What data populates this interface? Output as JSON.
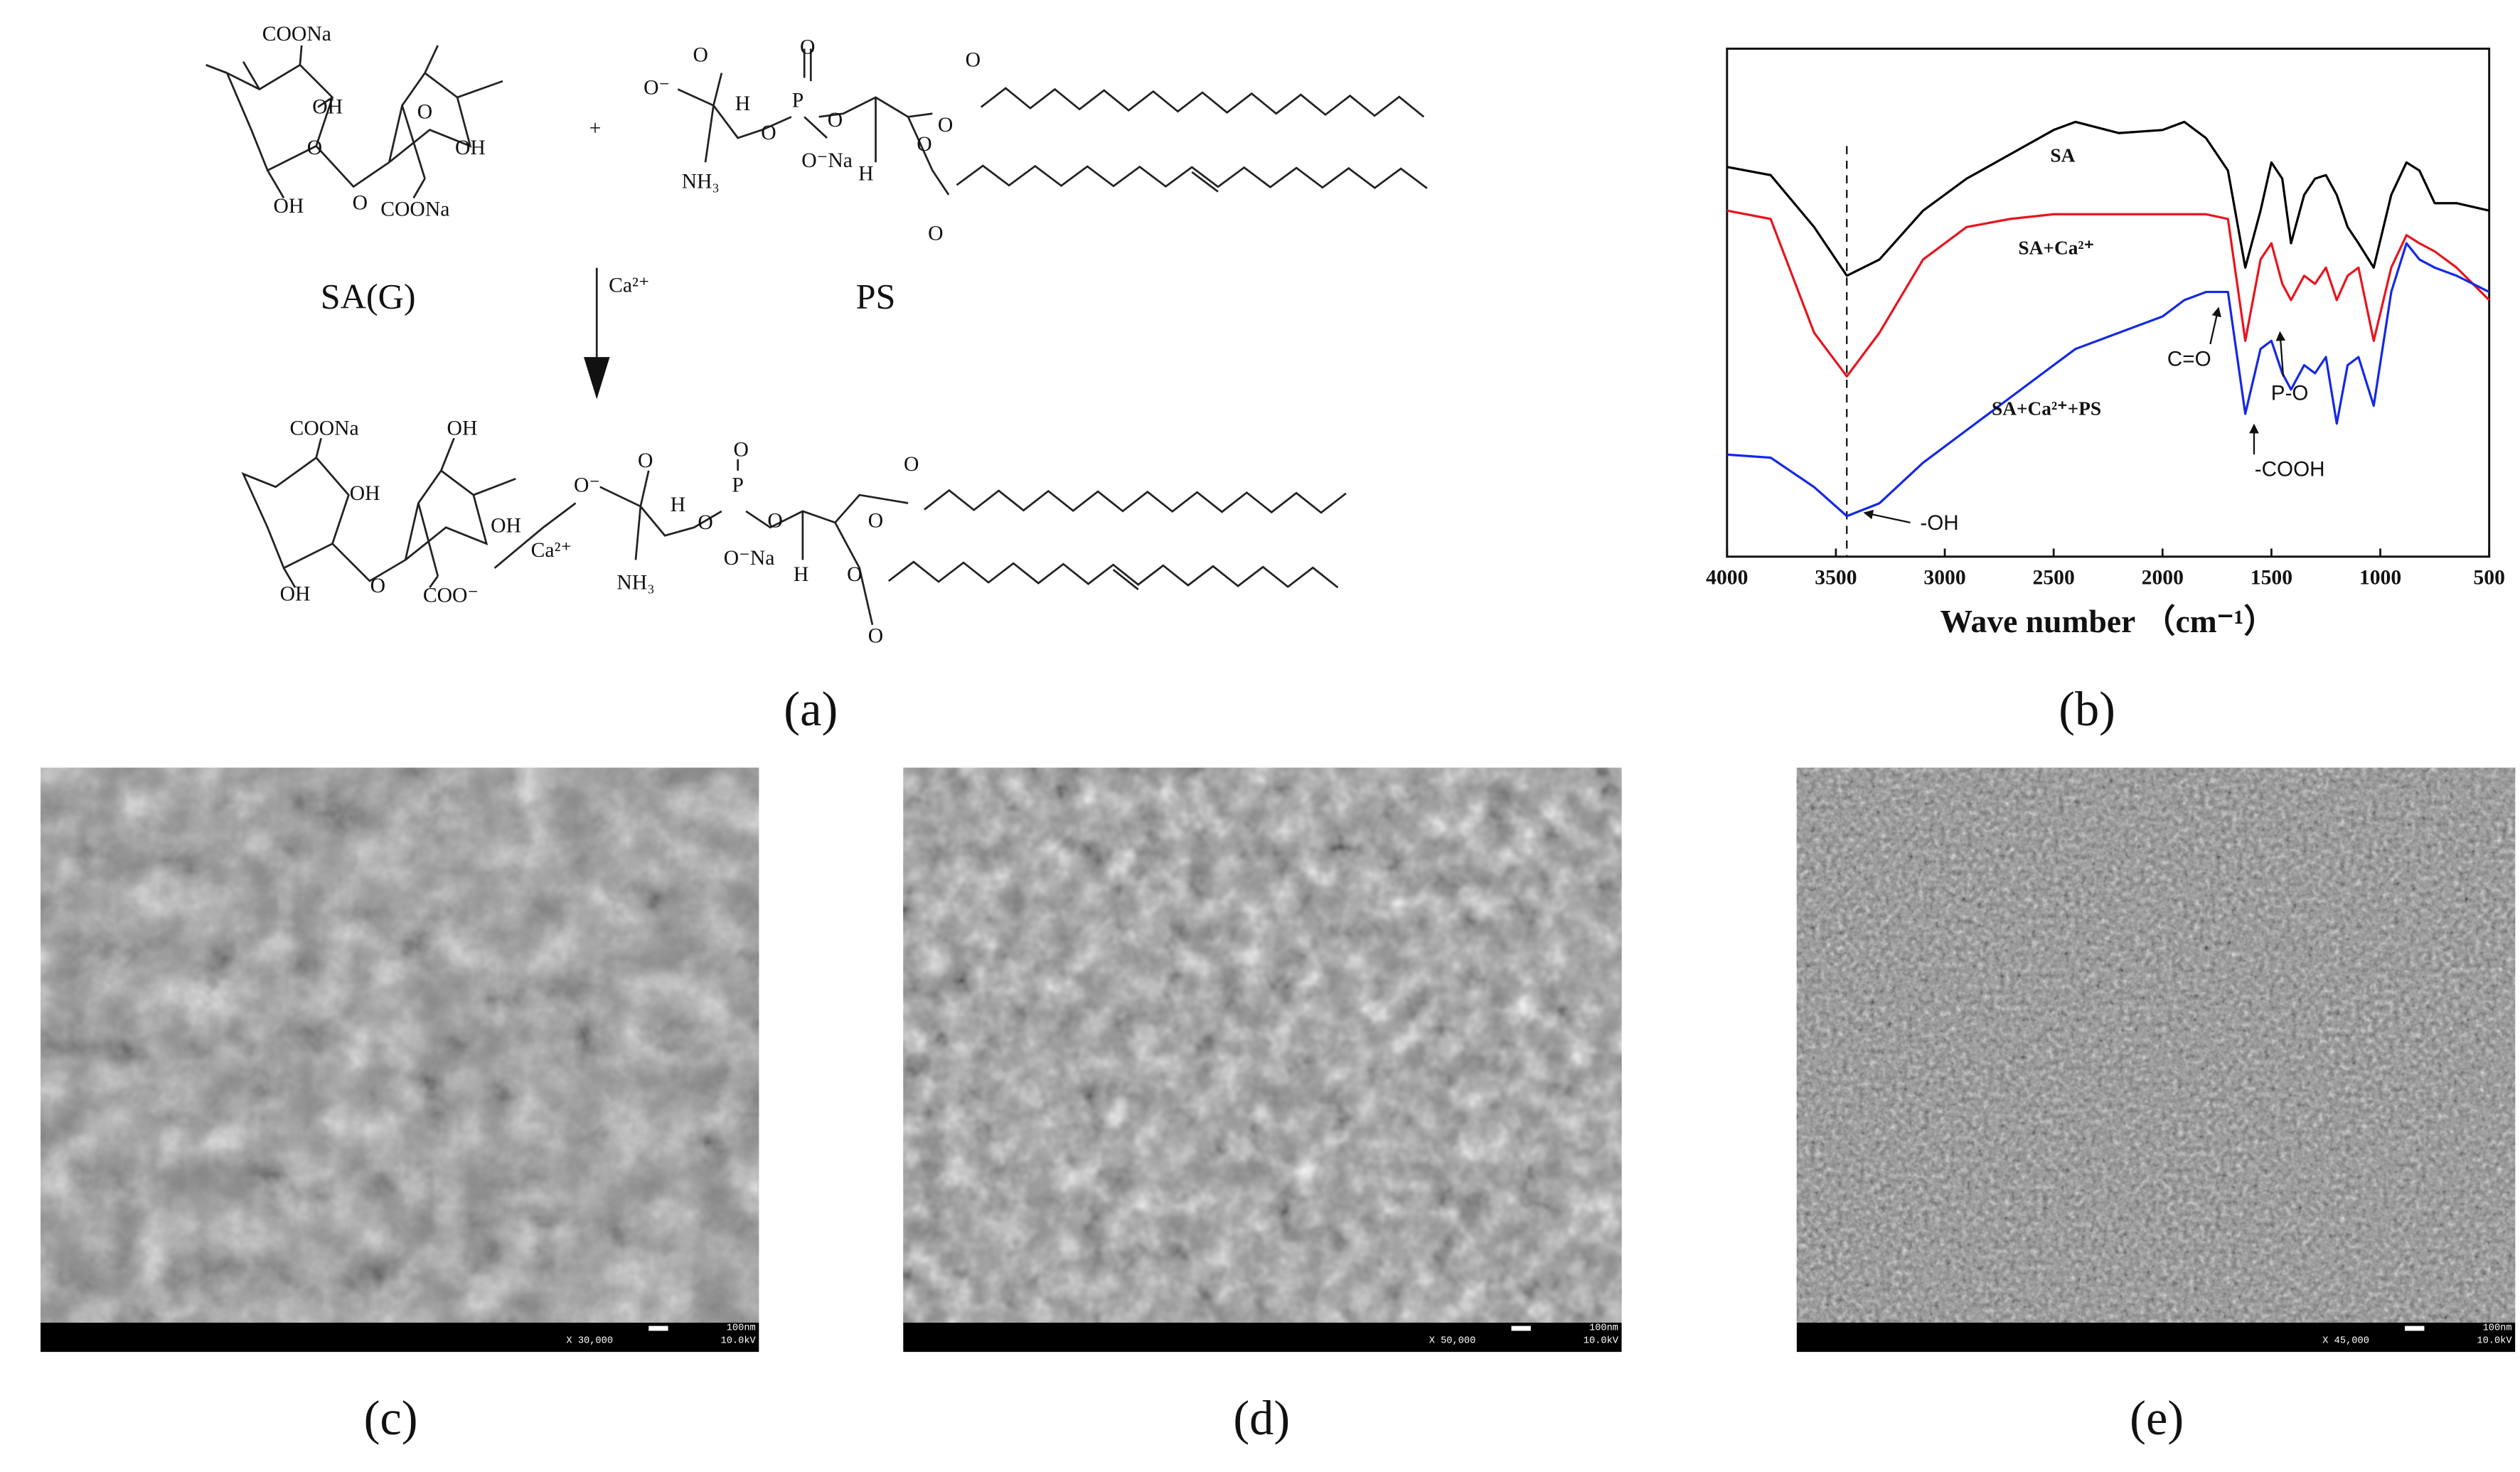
{
  "figure": {
    "panel_labels": [
      "(a)",
      "(b)",
      "(c)",
      "(d)",
      "(e)"
    ],
    "structure_labels": [
      "COONa",
      "OH",
      "O",
      "OH",
      "O",
      "COONa",
      "O",
      "OH",
      "SA(G)",
      "+",
      "O⁻",
      "O",
      "H",
      "NH₃",
      "O",
      "P",
      "O",
      "O⁻Na",
      "O",
      "H",
      "O",
      "O",
      "O",
      "O",
      "PS",
      "Ca²⁺",
      "COONa",
      "OH",
      "OH",
      "OH",
      "OH",
      "O",
      "COO⁻",
      "Ca²⁺",
      "O⁻",
      "O",
      "H",
      "NH₃",
      "O",
      "P",
      "O",
      "O⁻Na",
      "O",
      "H",
      "O",
      "O",
      "O",
      "O"
    ],
    "sem": [
      {
        "scale_bar": "100nm",
        "magnification": "X 30,000",
        "voltage": "10.0kV"
      },
      {
        "scale_bar": "100nm",
        "magnification": "X 50,000",
        "voltage": "10.0kV"
      },
      {
        "scale_bar": "100nm",
        "magnification": "X 45,000",
        "voltage": "10.0kV"
      }
    ]
  },
  "chart_data": {
    "type": "line",
    "x_label": "Wave number （cm⁻¹）",
    "xlim": [
      4000,
      500
    ],
    "xticks": [
      4000,
      3500,
      3000,
      2500,
      2000,
      1500,
      1000,
      500
    ],
    "ylim": [
      0,
      100
    ],
    "reference_line_x": 3450,
    "x": [
      4000,
      3800,
      3600,
      3450,
      3300,
      3100,
      2900,
      2700,
      2500,
      2400,
      2200,
      2000,
      1900,
      1800,
      1700,
      1620,
      1550,
      1500,
      1450,
      1410,
      1350,
      1300,
      1250,
      1200,
      1150,
      1100,
      1030,
      950,
      880,
      820,
      750,
      650,
      500
    ],
    "series": [
      {
        "name": "SA",
        "color": "#000000",
        "values": [
          76.7,
          75.1,
          64.9,
          55.3,
          58.5,
          68.1,
          74.4,
          79.2,
          84.0,
          85.6,
          83.4,
          84.0,
          85.6,
          82.4,
          76.0,
          56.9,
          68.1,
          77.6,
          74.4,
          61.7,
          71.2,
          74.4,
          75.1,
          71.2,
          64.9,
          61.7,
          56.9,
          71.2,
          77.6,
          76.0,
          69.6,
          69.6,
          68.1
        ]
      },
      {
        "name": "SA+Ca²⁺",
        "color": "#e8141e",
        "values": [
          68.1,
          66.5,
          44.1,
          35.5,
          44.1,
          58.5,
          64.9,
          66.5,
          67.4,
          67.4,
          67.4,
          67.4,
          67.4,
          67.4,
          66.5,
          42.5,
          58.5,
          61.7,
          53.7,
          50.5,
          55.3,
          53.7,
          56.9,
          50.5,
          55.3,
          56.9,
          42.5,
          56.9,
          63.3,
          61.7,
          60.1,
          56.9,
          50.5
        ]
      },
      {
        "name": "SA+Ca²⁺+PS",
        "color": "#1428e6",
        "values": [
          20.1,
          19.5,
          13.7,
          8.0,
          10.5,
          18.5,
          24.9,
          31.3,
          37.7,
          40.9,
          44.1,
          47.3,
          50.5,
          52.1,
          52.1,
          28.1,
          40.9,
          42.5,
          36.1,
          32.9,
          37.7,
          36.1,
          39.3,
          26.2,
          37.7,
          39.3,
          29.7,
          52.1,
          61.7,
          58.5,
          56.9,
          55.3,
          52.1
        ]
      }
    ],
    "annotations": [
      "C=O",
      "P-O",
      "-COOH",
      "-OH"
    ]
  }
}
